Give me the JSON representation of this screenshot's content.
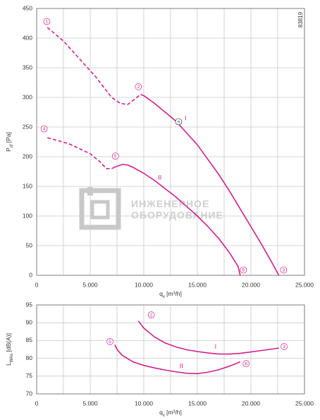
{
  "code": "83819",
  "watermark": [
    "ИНЖЕНЕРНОЕ",
    "ОБОРУДОВАНИЕ"
  ],
  "chart_data": [
    {
      "type": "line",
      "xlabel": [
        "q",
        "v",
        " [m³/h]"
      ],
      "ylabel": [
        "P",
        "sf",
        " [Pa]"
      ],
      "xlim": [
        0,
        25000
      ],
      "ylim": [
        0,
        450
      ],
      "xticks": [
        0,
        {
          "value": 5000,
          "label": "5.000"
        },
        {
          "value": 10000,
          "label": "10.000"
        },
        {
          "value": 15000,
          "label": "15.000"
        },
        {
          "value": 20000,
          "label": "20.000"
        },
        {
          "value": 25000,
          "label": "25.000"
        }
      ],
      "xgrid_minor": [
        2500,
        7500,
        12500,
        17500,
        22500
      ],
      "yticks": [
        0,
        50,
        100,
        150,
        200,
        250,
        300,
        350,
        400,
        450
      ],
      "grid": true,
      "series": [
        {
          "name": "I",
          "color": "#d0208a",
          "label_x": 13900,
          "label_y": 264,
          "x": [
            9700,
            10000,
            11000,
            12000,
            13000,
            14000,
            15000,
            16000,
            17000,
            18000,
            19000,
            20000,
            21000,
            22000,
            22600
          ],
          "values": [
            305,
            303,
            290,
            275,
            260,
            240,
            220,
            195,
            170,
            142,
            112,
            82,
            52,
            20,
            0
          ],
          "dashed": {
            "x": [
              1000,
              2500,
              4000,
              5500,
              7000,
              7800,
              8500,
              9000,
              9700
            ],
            "values": [
              418,
              395,
              365,
              335,
              300,
              290,
              288,
              295,
              305
            ]
          }
        },
        {
          "name": "II",
          "color": "#d0208a",
          "label_x": 11500,
          "label_y": 164,
          "x": [
            7000,
            7500,
            8000,
            8500,
            9000,
            10000,
            11000,
            12000,
            13000,
            14000,
            15000,
            16000,
            17000,
            18000,
            18800,
            19000
          ],
          "values": [
            180,
            184,
            187,
            186,
            182,
            172,
            160,
            146,
            132,
            116,
            100,
            82,
            62,
            38,
            15,
            0
          ],
          "dashed": {
            "x": [
              1000,
              3000,
              5000,
              6000,
              6500,
              7000
            ],
            "values": [
              232,
              222,
              205,
              190,
              180,
              180
            ]
          }
        }
      ],
      "annotations": [
        {
          "text": "1",
          "x": 950,
          "y": 428
        },
        {
          "text": "2",
          "x": 9500,
          "y": 318
        },
        {
          "text": "n",
          "x": 13250,
          "y": 259
        },
        {
          "text": "3",
          "x": 23050,
          "y": 9
        },
        {
          "text": "4",
          "x": 700,
          "y": 247
        },
        {
          "text": "5",
          "x": 7350,
          "y": 201
        },
        {
          "text": "6",
          "x": 19300,
          "y": 9
        }
      ]
    },
    {
      "type": "line",
      "xlabel": [
        "q",
        "v",
        " [m³/h]"
      ],
      "ylabel": [
        "L",
        "WAs",
        " [dB(A)]"
      ],
      "xlim": [
        0,
        25000
      ],
      "ylim": [
        70,
        95
      ],
      "xticks": [
        0,
        {
          "value": 5000,
          "label": "5.000"
        },
        {
          "value": 10000,
          "label": "10.000"
        },
        {
          "value": 15000,
          "label": "15.000"
        },
        {
          "value": 20000,
          "label": "20.000"
        },
        {
          "value": 25000,
          "label": "25.000"
        }
      ],
      "xgrid_minor": [
        2500,
        7500,
        12500,
        17500,
        22500
      ],
      "yticks": [
        70,
        75,
        80,
        85,
        90,
        95
      ],
      "grid": true,
      "series": [
        {
          "name": "I",
          "color": "#d0208a",
          "label_x": 16700,
          "label_y": 83.2,
          "x": [
            9500,
            10000,
            11000,
            12000,
            13000,
            14000,
            15000,
            16000,
            17000,
            18000,
            19000,
            20000,
            21000,
            22000,
            22600
          ],
          "values": [
            90.5,
            88.5,
            86,
            84.3,
            83.2,
            82.4,
            81.9,
            81.5,
            81.2,
            81.2,
            81.4,
            81.8,
            82.2,
            82.6,
            82.9
          ]
        },
        {
          "name": "II",
          "color": "#d0208a",
          "label_x": 13500,
          "label_y": 77.7,
          "x": [
            7300,
            7500,
            8000,
            9000,
            10000,
            11000,
            12000,
            13000,
            14000,
            15000,
            16000,
            17000,
            18000,
            19000
          ],
          "values": [
            83.8,
            82.5,
            80.8,
            79,
            78,
            77.3,
            76.7,
            76.2,
            75.8,
            75.7,
            76.1,
            76.8,
            77.8,
            79
          ]
        }
      ],
      "annotations": [
        {
          "text": "2",
          "x": 10700,
          "y": 92.2
        },
        {
          "text": "3",
          "x": 23100,
          "y": 83.3
        },
        {
          "text": "5",
          "x": 6850,
          "y": 84.7
        },
        {
          "text": "6",
          "x": 19550,
          "y": 78.5
        }
      ]
    }
  ]
}
